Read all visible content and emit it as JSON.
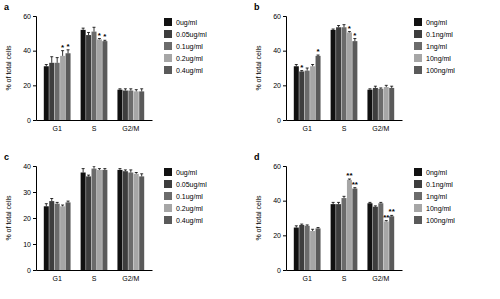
{
  "chart_data": [
    {
      "type": "bar",
      "title": "a",
      "y_label": "% of total cells",
      "categories": [
        "G1",
        "S",
        "G2/M"
      ],
      "ylim": [
        0,
        60
      ],
      "yticks": [
        0,
        20,
        40,
        60
      ],
      "series": [
        {
          "name": "0ug/ml",
          "color": "#111111",
          "values": [
            31,
            52,
            17.5
          ],
          "errors": [
            1,
            1,
            0.5
          ]
        },
        {
          "name": "0.05ug/ml",
          "color": "#3d3d3d",
          "values": [
            33,
            49,
            17
          ],
          "errors": [
            3.5,
            1.5,
            1
          ]
        },
        {
          "name": "0.1ug/ml",
          "color": "#6b6b6b",
          "values": [
            33,
            51,
            17
          ],
          "errors": [
            3,
            2.5,
            1
          ]
        },
        {
          "name": "0.2ug/ml",
          "color": "#a6a6a6",
          "values": [
            37,
            46.5,
            16.5
          ],
          "errors": [
            3,
            0.5,
            1
          ]
        },
        {
          "name": "0.4ug/ml",
          "color": "#5a5a5a",
          "values": [
            38.5,
            45.5,
            16.5
          ],
          "errors": [
            2,
            0.5,
            1.5
          ]
        }
      ],
      "annotations": [
        {
          "text": "*",
          "category": 0,
          "series": 3
        },
        {
          "text": "*",
          "category": 0,
          "series": 4
        },
        {
          "text": "*",
          "category": 1,
          "series": 3
        },
        {
          "text": "*",
          "category": 1,
          "series": 4
        }
      ]
    },
    {
      "type": "bar",
      "title": "b",
      "y_label": "% of total cells",
      "categories": [
        "G1",
        "S",
        "G2/M"
      ],
      "ylim": [
        0,
        60
      ],
      "yticks": [
        0,
        20,
        40,
        60
      ],
      "series": [
        {
          "name": "0ng/ml",
          "color": "#111111",
          "values": [
            31,
            52,
            17.5
          ],
          "errors": [
            1,
            0.5,
            0.5
          ]
        },
        {
          "name": "0.1ng/ml",
          "color": "#3d3d3d",
          "values": [
            28,
            53.5,
            18.5
          ],
          "errors": [
            0.5,
            1,
            1
          ]
        },
        {
          "name": "1ng/ml",
          "color": "#6b6b6b",
          "values": [
            28.5,
            53.5,
            18
          ],
          "errors": [
            1.5,
            1.5,
            0.5
          ]
        },
        {
          "name": "10ng/ml",
          "color": "#a6a6a6",
          "values": [
            31,
            50.5,
            19
          ],
          "errors": [
            1,
            0.5,
            1
          ]
        },
        {
          "name": "100ng/ml",
          "color": "#5a5a5a",
          "values": [
            37,
            45.5,
            18.5
          ],
          "errors": [
            0.5,
            1.5,
            1
          ]
        }
      ],
      "annotations": [
        {
          "text": "*",
          "category": 0,
          "series": 1
        },
        {
          "text": "*",
          "category": 0,
          "series": 4
        },
        {
          "text": "*",
          "category": 1,
          "series": 3
        },
        {
          "text": "*",
          "category": 1,
          "series": 4
        }
      ]
    },
    {
      "type": "bar",
      "title": "c",
      "y_label": "% of total cells",
      "categories": [
        "G1",
        "S",
        "G2/M"
      ],
      "ylim": [
        0,
        40
      ],
      "yticks": [
        0,
        10,
        20,
        30,
        40
      ],
      "series": [
        {
          "name": "0ug/ml",
          "color": "#111111",
          "values": [
            24.5,
            37.5,
            38.5
          ],
          "errors": [
            1,
            1.5,
            0.5
          ]
        },
        {
          "name": "0.05ug/ml",
          "color": "#3d3d3d",
          "values": [
            26.5,
            36,
            38
          ],
          "errors": [
            1,
            0.5,
            0.5
          ]
        },
        {
          "name": "0.1ug/ml",
          "color": "#6b6b6b",
          "values": [
            25.5,
            39,
            37.5
          ],
          "errors": [
            0.5,
            1,
            1
          ]
        },
        {
          "name": "0.2ug/ml",
          "color": "#a6a6a6",
          "values": [
            24.5,
            38.5,
            37
          ],
          "errors": [
            0.5,
            0.5,
            0.5
          ]
        },
        {
          "name": "0.4ug/ml",
          "color": "#5a5a5a",
          "values": [
            26,
            38.5,
            36
          ],
          "errors": [
            0.5,
            0.5,
            1
          ]
        }
      ],
      "annotations": []
    },
    {
      "type": "bar",
      "title": "d",
      "y_label": "% of total cells",
      "categories": [
        "G1",
        "S",
        "G2/M"
      ],
      "ylim": [
        0,
        60
      ],
      "yticks": [
        0,
        20,
        40,
        60
      ],
      "series": [
        {
          "name": "0ng/ml",
          "color": "#111111",
          "values": [
            24.5,
            38,
            38.5
          ],
          "errors": [
            1,
            1,
            0.5
          ]
        },
        {
          "name": "0.1ng/ml",
          "color": "#3d3d3d",
          "values": [
            26,
            38,
            36.5
          ],
          "errors": [
            0.5,
            1,
            0.5
          ]
        },
        {
          "name": "1ng/ml",
          "color": "#6b6b6b",
          "values": [
            25.5,
            41.5,
            38.5
          ],
          "errors": [
            0.5,
            1,
            0.5
          ]
        },
        {
          "name": "10ng/ml",
          "color": "#a6a6a6",
          "values": [
            22.5,
            52,
            28
          ],
          "errors": [
            1,
            0.5,
            0.5
          ]
        },
        {
          "name": "100ng/ml",
          "color": "#5a5a5a",
          "values": [
            24,
            47,
            31
          ],
          "errors": [
            0.5,
            0.5,
            0.5
          ]
        }
      ],
      "annotations": [
        {
          "text": "**",
          "category": 1,
          "series": 3
        },
        {
          "text": "**",
          "category": 1,
          "series": 4
        },
        {
          "text": "**",
          "category": 2,
          "series": 3
        },
        {
          "text": "**",
          "category": 2,
          "series": 4
        }
      ]
    }
  ]
}
